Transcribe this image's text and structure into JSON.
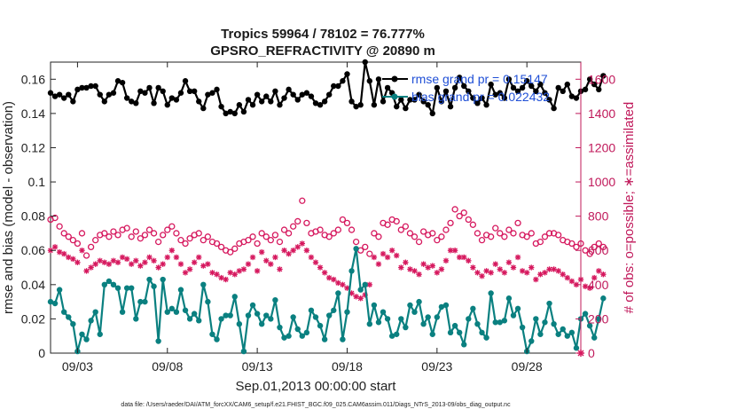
{
  "chart_data": {
    "type": "line",
    "title_line1": "Tropics 59964 / 78102 = 76.777%",
    "title_line2": "GPSRO_REFRACTIVITY @ 20890 m",
    "xlabel": "Sep.01,2013 00:00:00 start",
    "ylabel_left": "rmse and bias (model - observation)",
    "ylabel_right": "# of obs: o=possible; ∗=assimilated",
    "footer": "data file: /Users/raeder/DAI/ATM_forcXX/CAM6_setup/f.e21.FHIST_BGC.f09_025.CAM6assim.011/Diags_NTrS_2013-09/obs_diag_output.nc",
    "x_range_days": [
      0.5,
      30.0
    ],
    "xtick_days": [
      2,
      7,
      12,
      17,
      22,
      27
    ],
    "xtick_labels": [
      "09/03",
      "09/08",
      "09/13",
      "09/18",
      "09/23",
      "09/28"
    ],
    "ylim_left": [
      0,
      0.17
    ],
    "yticks_left": [
      0,
      0.02,
      0.04,
      0.06,
      0.08,
      0.1,
      0.12,
      0.14,
      0.16
    ],
    "ytick_labels_left": [
      "0",
      "0.02",
      "0.04",
      "0.06",
      "0.08",
      "0.1",
      "0.12",
      "0.14",
      "0.16"
    ],
    "ylim_right": [
      0,
      1700
    ],
    "yticks_right": [
      0,
      200,
      400,
      600,
      800,
      1000,
      1200,
      1400,
      1600
    ],
    "ytick_labels_right": [
      "0",
      "200",
      "400",
      "600",
      "800",
      "1000",
      "1200",
      "1400",
      "1600"
    ],
    "x_start_day": 0.5,
    "x_step_day": 0.25,
    "series": [
      {
        "name": "rmse grand pr = 0.15147",
        "axis": "left",
        "color": "#000000",
        "values": [
          0.152,
          0.15,
          0.151,
          0.149,
          0.151,
          0.147,
          0.154,
          0.155,
          0.155,
          0.156,
          0.156,
          0.151,
          0.147,
          0.151,
          0.152,
          0.159,
          0.158,
          0.149,
          0.147,
          0.146,
          0.153,
          0.152,
          0.155,
          0.146,
          0.155,
          0.153,
          0.145,
          0.149,
          0.148,
          0.152,
          0.159,
          0.153,
          0.153,
          0.147,
          0.143,
          0.151,
          0.152,
          0.154,
          0.144,
          0.14,
          0.141,
          0.14,
          0.145,
          0.141,
          0.148,
          0.145,
          0.151,
          0.147,
          0.15,
          0.147,
          0.153,
          0.145,
          0.149,
          0.154,
          0.151,
          0.148,
          0.151,
          0.152,
          0.15,
          0.146,
          0.145,
          0.147,
          0.151,
          0.156,
          0.156,
          0.159,
          0.163,
          0.147,
          0.144,
          0.145,
          0.17,
          0.159,
          0.145,
          0.16,
          0.147,
          0.155,
          0.152,
          0.144,
          0.148,
          0.143,
          0.148,
          0.148,
          0.151,
          0.147,
          0.145,
          0.14,
          0.155,
          0.147,
          0.153,
          0.144,
          0.155,
          0.161,
          0.156,
          0.153,
          0.149,
          0.146,
          0.149,
          0.145,
          0.157,
          0.151,
          0.152,
          0.149,
          0.16,
          0.155,
          0.153,
          0.155,
          0.159,
          0.156,
          0.153,
          0.157,
          0.152,
          0.148,
          0.143,
          0.155,
          0.153,
          0.157,
          0.15,
          0.149,
          0.153,
          0.154,
          0.16,
          0.157,
          0.154,
          0.162
        ]
      },
      {
        "name": "bias grand pr = 0.022432",
        "axis": "left",
        "color": "#0a8080",
        "values": [
          0.03,
          0.029,
          0.037,
          0.024,
          0.021,
          0.017,
          0.001,
          0.011,
          0.008,
          0.019,
          0.024,
          0.011,
          0.04,
          0.042,
          0.04,
          0.038,
          0.024,
          0.038,
          0.038,
          0.02,
          0.03,
          0.03,
          0.043,
          0.039,
          0.007,
          0.043,
          0.024,
          0.026,
          0.024,
          0.037,
          0.025,
          0.02,
          0.023,
          0.019,
          0.04,
          0.03,
          0.011,
          0.008,
          0.02,
          0.022,
          0.022,
          0.033,
          0.017,
          0.001,
          0.022,
          0.028,
          0.023,
          0.017,
          0.022,
          0.02,
          0.031,
          0.015,
          0.009,
          0.01,
          0.021,
          0.014,
          0.01,
          0.012,
          0.025,
          0.021,
          0.016,
          0.008,
          0.022,
          0.025,
          0.035,
          0.008,
          0.024,
          0.048,
          0.061,
          0.037,
          0.04,
          0.017,
          0.028,
          0.018,
          0.024,
          0.02,
          0.01,
          0.011,
          0.02,
          0.015,
          0.028,
          0.024,
          0.03,
          0.017,
          0.021,
          0.011,
          0.021,
          0.027,
          0.028,
          0.012,
          0.016,
          0.012,
          0.005,
          0.02,
          0.026,
          0.017,
          0.012,
          0.009,
          0.035,
          0.018,
          0.018,
          0.019,
          0.032,
          0.022,
          0.026,
          0.015,
          0.001,
          0.007,
          0.02,
          0.011,
          0.018,
          0.029,
          0.017,
          0.011,
          0.014,
          0.01,
          0.012,
          0.003,
          0.02,
          0.023,
          0.016,
          0.009,
          0.02,
          0.032
        ]
      },
      {
        "name": "# possible",
        "axis": "right",
        "color": "#d6185e",
        "values": [
          780,
          790,
          740,
          700,
          680,
          660,
          640,
          700,
          570,
          620,
          660,
          690,
          700,
          680,
          710,
          690,
          720,
          730,
          680,
          710,
          670,
          690,
          720,
          700,
          650,
          690,
          720,
          740,
          700,
          660,
          640,
          670,
          690,
          700,
          660,
          680,
          650,
          640,
          620,
          600,
          590,
          610,
          640,
          650,
          660,
          680,
          640,
          700,
          680,
          660,
          690,
          650,
          720,
          700,
          740,
          770,
          890,
          760,
          700,
          710,
          720,
          690,
          680,
          700,
          720,
          780,
          760,
          720,
          650,
          600,
          620,
          580,
          700,
          680,
          760,
          750,
          780,
          770,
          720,
          740,
          700,
          680,
          650,
          710,
          690,
          700,
          660,
          680,
          720,
          760,
          840,
          800,
          820,
          780,
          750,
          700,
          660,
          690,
          680,
          730,
          700,
          680,
          720,
          700,
          760,
          690,
          680,
          700,
          640,
          650,
          680,
          700,
          700,
          690,
          660,
          650,
          640,
          620,
          640,
          600,
          580,
          620,
          640,
          620
        ]
      },
      {
        "name": "# assimilated",
        "axis": "right",
        "color": "#d6185e",
        "values": [
          600,
          620,
          590,
          580,
          560,
          550,
          530,
          600,
          480,
          500,
          520,
          540,
          530,
          520,
          540,
          530,
          560,
          550,
          520,
          540,
          510,
          530,
          560,
          540,
          500,
          520,
          560,
          600,
          560,
          520,
          470,
          490,
          530,
          560,
          510,
          520,
          470,
          460,
          440,
          430,
          470,
          460,
          480,
          490,
          520,
          560,
          480,
          590,
          540,
          520,
          560,
          490,
          600,
          580,
          600,
          620,
          640,
          600,
          560,
          530,
          500,
          470,
          440,
          430,
          410,
          400,
          380,
          350,
          330,
          320,
          340,
          400,
          560,
          520,
          580,
          560,
          600,
          570,
          500,
          530,
          490,
          480,
          460,
          520,
          500,
          510,
          470,
          490,
          540,
          600,
          600,
          560,
          560,
          540,
          500,
          470,
          450,
          480,
          470,
          520,
          490,
          470,
          530,
          500,
          560,
          480,
          470,
          500,
          430,
          460,
          470,
          490,
          490,
          480,
          460,
          440,
          420,
          400,
          430,
          390,
          380,
          440,
          480,
          460
        ]
      }
    ],
    "legend": [
      "rmse grand pr = 0.15147",
      "bias grand pr = 0.022432"
    ],
    "legend_position": "top-right",
    "grid": false
  },
  "colors": {
    "rmse": "#000000",
    "bias": "#0a8080",
    "obs": "#d6185e",
    "right_axis": "#c0185a"
  }
}
